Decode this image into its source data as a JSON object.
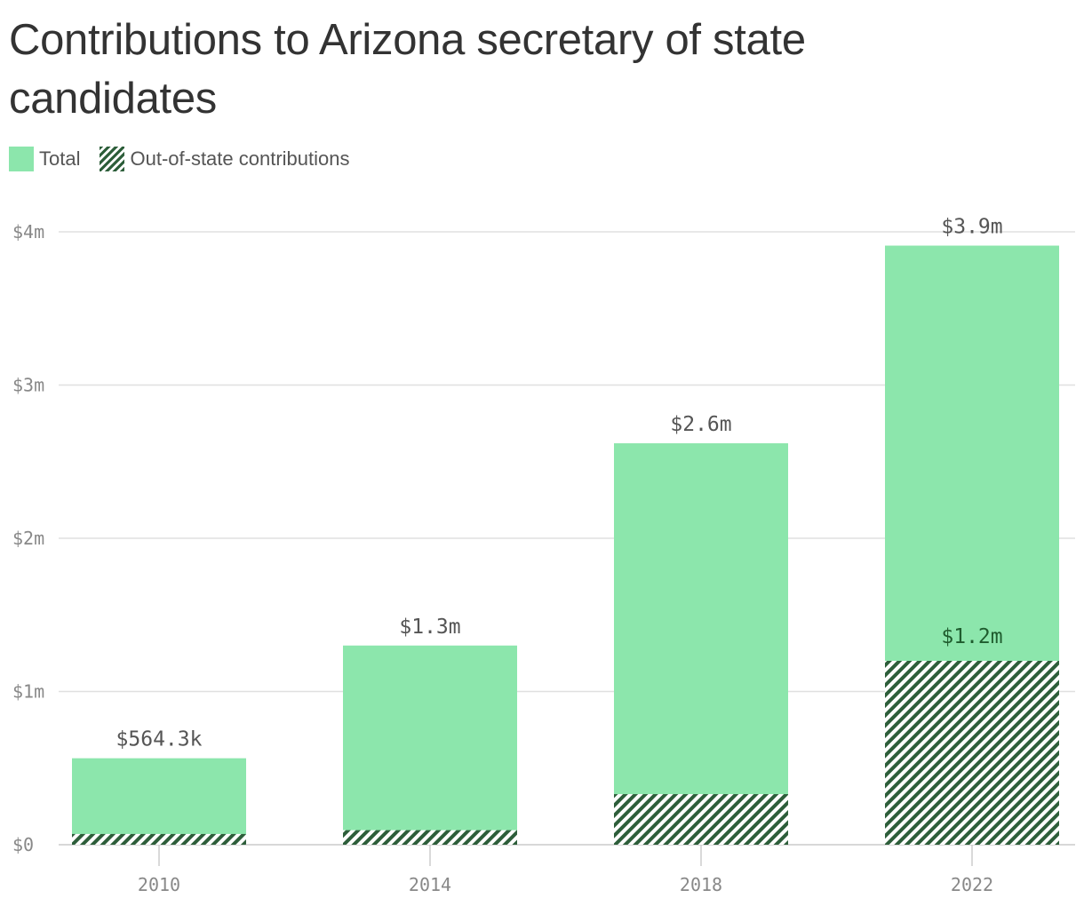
{
  "colors": {
    "total": "#8ce6ac",
    "out_of_state_fill": "#2d5e3a",
    "gridline": "#e0e0e0",
    "tick_text": "#888888",
    "label_text": "#555555",
    "inner_label_text": "#1f5c2e"
  },
  "chart_data": {
    "type": "bar",
    "title": "Contributions to Arizona secretary of state candidates",
    "xlabel": "",
    "ylabel": "",
    "categories": [
      "2010",
      "2014",
      "2018",
      "2022"
    ],
    "series": [
      {
        "name": "Total",
        "values": [
          564300,
          1300000,
          2620000,
          3910000
        ],
        "labels": [
          "$564.3k",
          "$1.3m",
          "$2.6m",
          "$3.9m"
        ]
      },
      {
        "name": "Out-of-state contributions",
        "values": [
          70000,
          95000,
          330000,
          1200000
        ],
        "labels": [
          "",
          "",
          "",
          "$1.2m"
        ]
      }
    ],
    "ylim": [
      0,
      4000000
    ],
    "yticks": [
      0,
      1000000,
      2000000,
      3000000,
      4000000
    ],
    "ytick_labels": [
      "$0",
      "$1m",
      "$2m",
      "$3m",
      "$4m"
    ],
    "grid": true,
    "legend_position": "top-left"
  }
}
